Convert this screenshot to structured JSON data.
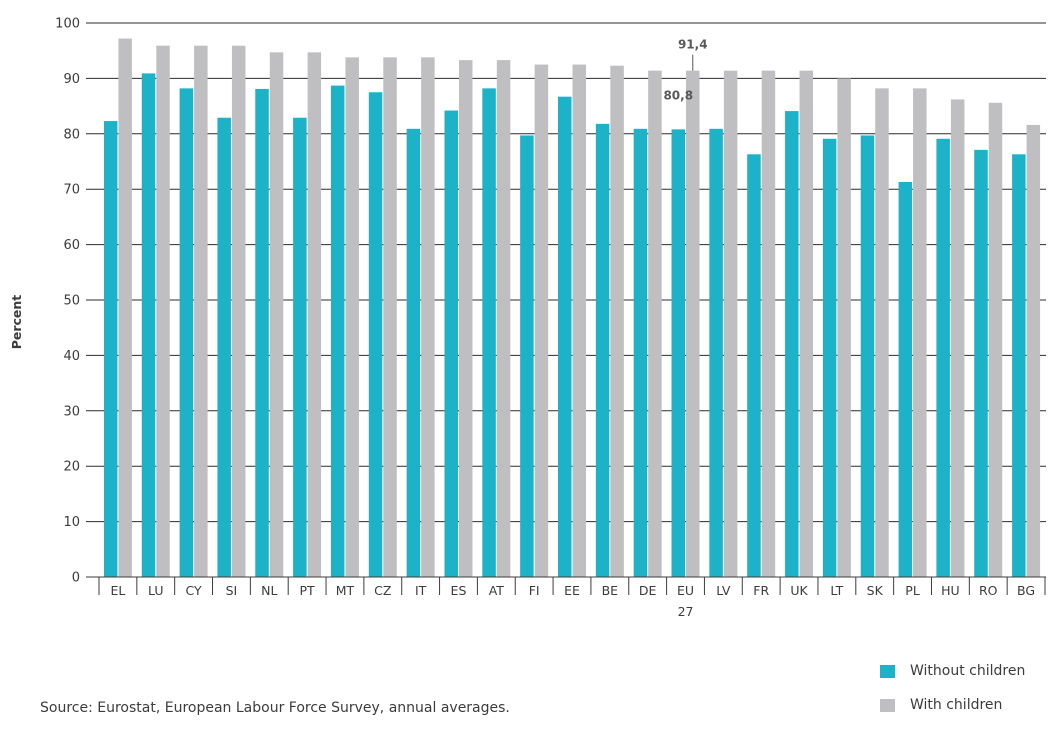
{
  "chart_data": {
    "type": "bar",
    "ylabel": "Percent",
    "ylim": [
      0,
      100
    ],
    "yticks": [
      0,
      10,
      20,
      30,
      40,
      50,
      60,
      70,
      80,
      90,
      100
    ],
    "grid": true,
    "categories": [
      "EL",
      "LU",
      "CY",
      "SI",
      "NL",
      "PT",
      "MT",
      "CZ",
      "IT",
      "ES",
      "AT",
      "FI",
      "EE",
      "BE",
      "DE",
      "EU\n27",
      "LV",
      "FR",
      "UK",
      "LT",
      "SK",
      "PL",
      "HU",
      "RO",
      "BG"
    ],
    "series": [
      {
        "name": "Without children",
        "color": "#1cb3c8",
        "values": [
          82.3,
          90.9,
          88.2,
          82.9,
          88.1,
          82.9,
          88.7,
          87.5,
          80.9,
          84.2,
          88.2,
          79.7,
          86.7,
          81.8,
          80.9,
          80.8,
          80.9,
          76.3,
          84.1,
          79.1,
          79.7,
          71.3,
          79.1,
          77.1,
          76.3
        ]
      },
      {
        "name": "With children",
        "color": "#bfbfc1",
        "values": [
          97.2,
          95.9,
          95.9,
          95.9,
          94.7,
          94.7,
          93.8,
          93.8,
          93.8,
          93.3,
          93.3,
          92.5,
          92.5,
          92.3,
          91.4,
          91.4,
          91.4,
          91.4,
          91.4,
          90.0,
          88.2,
          88.2,
          86.2,
          85.6,
          81.6
        ]
      }
    ],
    "annotations": [
      {
        "category": "EU\n27",
        "series": "With children",
        "label": "91,4"
      },
      {
        "category": "EU\n27",
        "series": "Without children",
        "label": "80,8"
      }
    ],
    "legend_position": "bottom-right"
  },
  "source_text": "Source: Eurostat, European Labour Force Survey, annual averages."
}
